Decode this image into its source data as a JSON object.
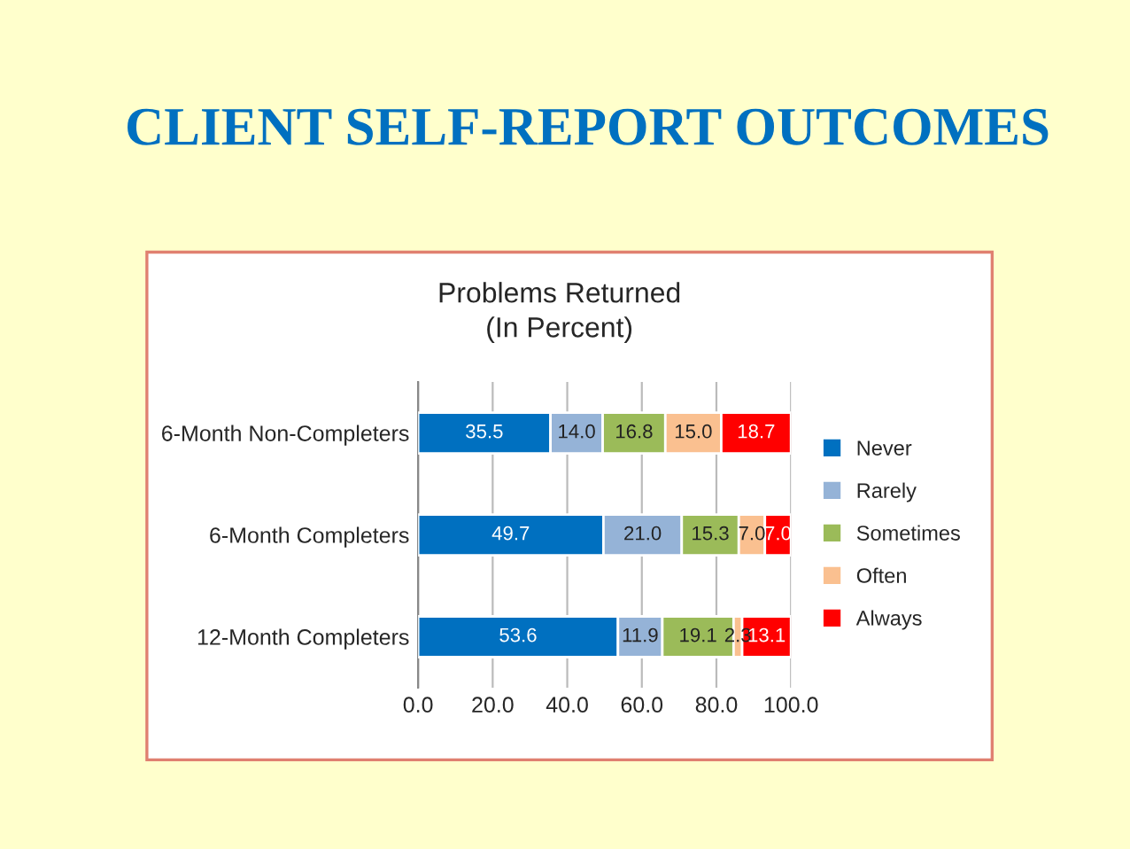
{
  "chart_data": {
    "type": "bar",
    "orientation": "horizontal",
    "stacked": true,
    "title": "CLIENT SELF-REPORT OUTCOMES",
    "subtitle": "Problems Returned\n(In Percent)",
    "categories": [
      "6-Month Non-Completers",
      "6-Month Completers",
      "12-Month Completers"
    ],
    "series": [
      {
        "name": "Never",
        "color": "#0070c0",
        "values": [
          35.5,
          49.7,
          53.6
        ],
        "value_labels": [
          "35.5",
          "49.7",
          "53.6"
        ]
      },
      {
        "name": "Rarely",
        "color": "#95b3d7",
        "values": [
          14.0,
          21.0,
          11.9
        ],
        "value_labels": [
          "14.0",
          "21.0",
          "11.9"
        ]
      },
      {
        "name": "Sometimes",
        "color": "#9bbb59",
        "values": [
          16.8,
          15.3,
          19.1
        ],
        "value_labels": [
          "16.8",
          "15.3",
          "19.1"
        ]
      },
      {
        "name": "Often",
        "color": "#fac090",
        "values": [
          15.0,
          7.0,
          2.3
        ],
        "value_labels": [
          "15.0",
          "7.0",
          "2.3"
        ]
      },
      {
        "name": "Always",
        "color": "#ff0000",
        "values": [
          18.7,
          7.0,
          13.1
        ],
        "value_labels": [
          "18.7",
          "7.0",
          "13.1"
        ]
      }
    ],
    "xlim": [
      0,
      100
    ],
    "xticks": [
      {
        "value": 0,
        "label": "0.0"
      },
      {
        "value": 20,
        "label": "20.0"
      },
      {
        "value": 40,
        "label": "40.0"
      },
      {
        "value": 60,
        "label": "60.0"
      },
      {
        "value": 80,
        "label": "80.0"
      },
      {
        "value": 100,
        "label": "100.0"
      }
    ],
    "grid": "x",
    "legend": "right"
  }
}
